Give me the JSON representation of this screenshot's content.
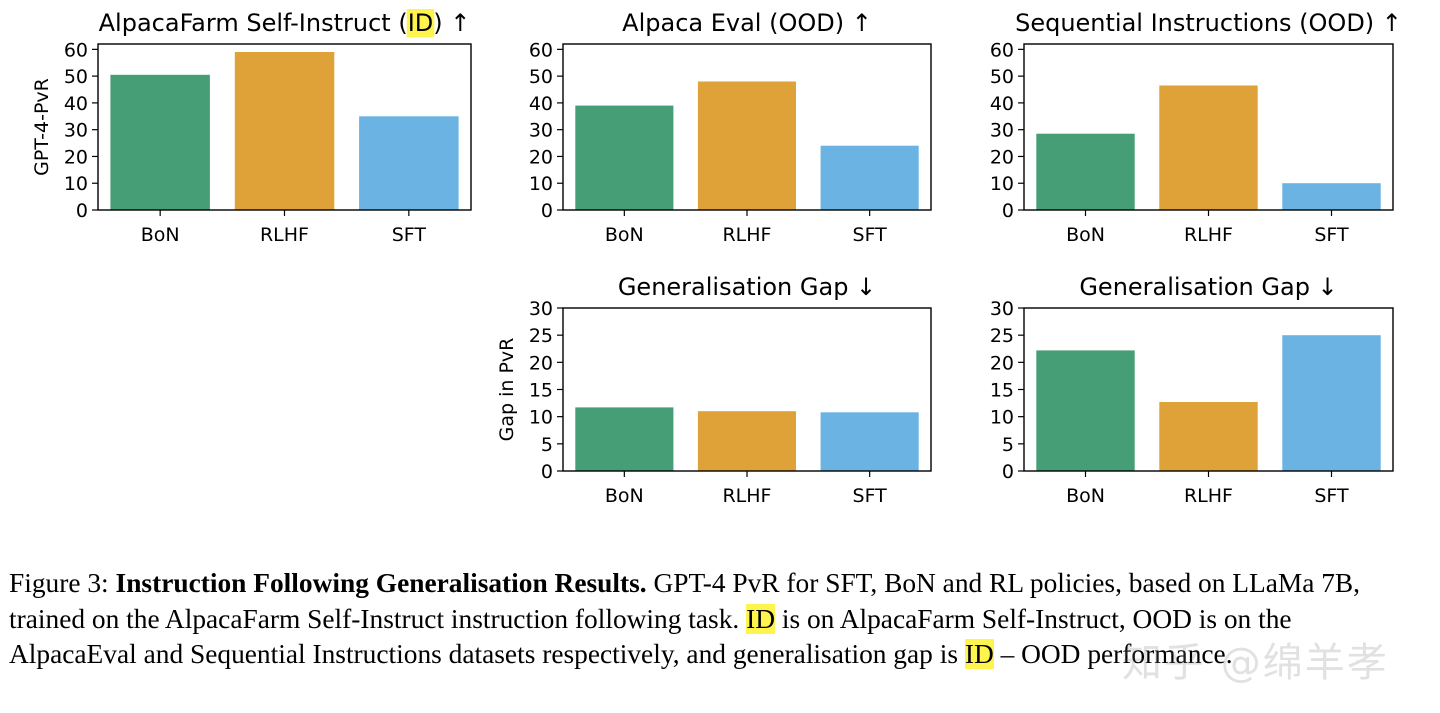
{
  "chart_data": [
    {
      "type": "bar",
      "title": "AlpacaFarm Self-Instruct (ID) ↑",
      "title_highlight": "ID",
      "ylabel": "GPT-4-PvR",
      "categories": [
        "BoN",
        "RLHF",
        "SFT"
      ],
      "values": [
        50.5,
        59,
        35
      ],
      "ylim": [
        0,
        62
      ],
      "yticks": [
        0,
        10,
        20,
        30,
        40,
        50,
        60
      ]
    },
    {
      "type": "bar",
      "title": "Alpaca Eval (OOD) ↑",
      "ylabel": "",
      "categories": [
        "BoN",
        "RLHF",
        "SFT"
      ],
      "values": [
        39,
        48,
        24
      ],
      "ylim": [
        0,
        62
      ],
      "yticks": [
        0,
        10,
        20,
        30,
        40,
        50,
        60
      ]
    },
    {
      "type": "bar",
      "title": "Sequential Instructions (OOD) ↑",
      "ylabel": "",
      "categories": [
        "BoN",
        "RLHF",
        "SFT"
      ],
      "values": [
        28.5,
        46.5,
        10
      ],
      "ylim": [
        0,
        62
      ],
      "yticks": [
        0,
        10,
        20,
        30,
        40,
        50,
        60
      ]
    },
    {
      "type": "bar",
      "title": "Generalisation Gap ↓",
      "ylabel": "Gap in PvR",
      "categories": [
        "BoN",
        "RLHF",
        "SFT"
      ],
      "values": [
        11.7,
        11,
        10.8
      ],
      "ylim": [
        0,
        30
      ],
      "yticks": [
        0,
        5,
        10,
        15,
        20,
        25,
        30
      ]
    },
    {
      "type": "bar",
      "title": "Generalisation Gap ↓",
      "ylabel": "",
      "categories": [
        "BoN",
        "RLHF",
        "SFT"
      ],
      "values": [
        22.2,
        12.7,
        25
      ],
      "ylim": [
        0,
        30
      ],
      "yticks": [
        0,
        5,
        10,
        15,
        20,
        25,
        30
      ]
    }
  ],
  "colors": {
    "BoN": "#469e76",
    "RLHF": "#dea238",
    "SFT": "#6bb3e2"
  },
  "caption": {
    "label": "Figure 3:",
    "bold": "Instruction Following Generalisation Results.",
    "part1": " GPT-4 PvR for SFT, BoN and RL policies, based on LLaMa 7B, trained on the AlpacaFarm Self-Instruct instruction following task. ",
    "hl1": "ID",
    "part2": " is on AlpacaFarm Self-Instruct, OOD is on the AlpacaEval and Sequential Instructions datasets respectively, and generalisation gap is ",
    "hl2": "ID",
    "part3": " – OOD performance."
  },
  "watermark": "知乎 @绵羊孝"
}
